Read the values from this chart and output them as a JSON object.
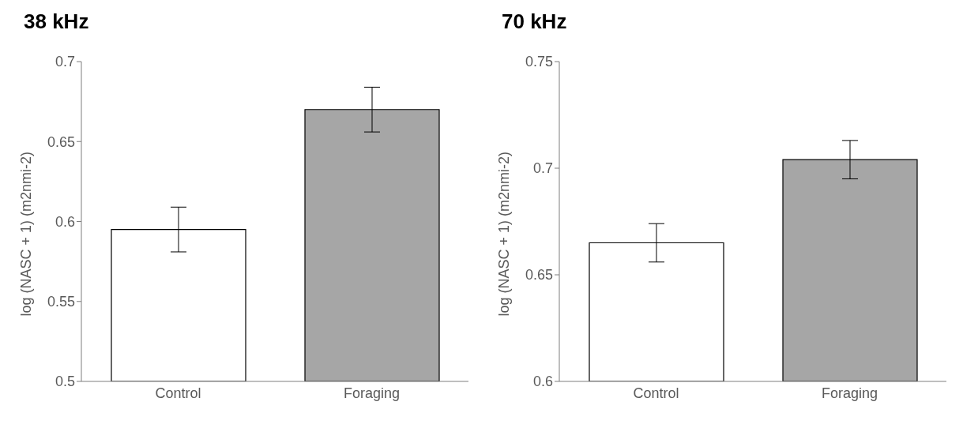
{
  "chart_data": [
    {
      "type": "bar",
      "title": "38 kHz",
      "ylabel": "log (NASC + 1) (m2nmi-2)",
      "categories": [
        "Control",
        "Foraging"
      ],
      "values": [
        0.595,
        0.67
      ],
      "errors": [
        0.014,
        0.014
      ],
      "colors": [
        "#ffffff",
        "#a6a6a6"
      ],
      "ylim": [
        0.5,
        0.7
      ],
      "yticks": [
        0.5,
        0.55,
        0.6,
        0.65,
        0.7
      ],
      "grid": false,
      "legend": false
    },
    {
      "type": "bar",
      "title": "70 kHz",
      "ylabel": "log (NASC + 1) (m2nmi-2)",
      "categories": [
        "Control",
        "Foraging"
      ],
      "values": [
        0.665,
        0.704
      ],
      "errors": [
        0.009,
        0.009
      ],
      "colors": [
        "#ffffff",
        "#a6a6a6"
      ],
      "ylim": [
        0.6,
        0.75
      ],
      "yticks": [
        0.6,
        0.65,
        0.7,
        0.75
      ],
      "grid": false,
      "legend": false
    }
  ]
}
